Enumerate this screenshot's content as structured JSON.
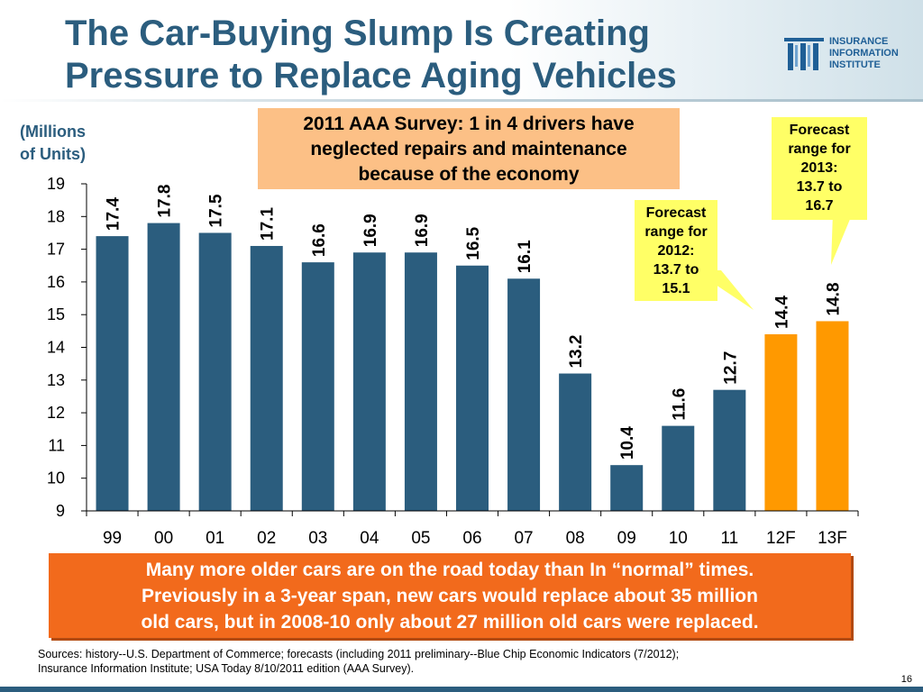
{
  "slide": {
    "title_line1": "The Car-Buying Slump Is Creating",
    "title_line2": "Pressure to Replace Aging Vehicles",
    "logo_line1": "INSURANCE",
    "logo_line2": "INFORMATION",
    "logo_line3": "INSTITUTE",
    "units_line1": "(Millions",
    "units_line2": "of Units)",
    "survey_line1": "2011 AAA Survey: 1 in 4 drivers have",
    "survey_line2": "neglected repairs and maintenance",
    "survey_line3": "because of the economy",
    "callout_2012": [
      "Forecast",
      "range for",
      "2012:",
      "13.7 to",
      "15.1"
    ],
    "callout_2013": [
      "Forecast",
      "range for",
      "2013:",
      "13.7 to",
      "16.7"
    ],
    "bottom_line1": "Many more older cars are on the road today than In “normal” times.",
    "bottom_line2": "Previously in a 3-year span, new cars would replace about 35 million",
    "bottom_line3": "old cars, but in 2008-10 only about 27 million old cars were replaced.",
    "sources_line1": "Sources: history--U.S. Department of Commerce; forecasts (including 2011 preliminary--Blue Chip Economic Indicators (7/2012);",
    "sources_line2": "Insurance Information Institute; USA Today 8/10/2011 edition (AAA Survey).",
    "page_number": "16"
  },
  "colors": {
    "title": "#2b5d7e",
    "bar_history": "#2b5d7e",
    "bar_forecast": "#ff9900",
    "survey_box": "#fcc086",
    "callout": "#ffff66",
    "bottom_box": "#f26a1c"
  },
  "chart_data": {
    "type": "bar",
    "title": "",
    "ylabel": "(Millions of Units)",
    "xlabel": "",
    "ylim": [
      9,
      19
    ],
    "yticks": [
      9,
      10,
      11,
      12,
      13,
      14,
      15,
      16,
      17,
      18,
      19
    ],
    "categories": [
      "99",
      "00",
      "01",
      "02",
      "03",
      "04",
      "05",
      "06",
      "07",
      "08",
      "09",
      "10",
      "11",
      "12F",
      "13F"
    ],
    "values": [
      17.4,
      17.8,
      17.5,
      17.1,
      16.6,
      16.9,
      16.9,
      16.5,
      16.1,
      13.2,
      10.4,
      11.6,
      12.7,
      14.4,
      14.8
    ],
    "value_labels": [
      "17.4",
      "17.8",
      "17.5",
      "17.1",
      "16.6",
      "16.9",
      "16.9",
      "16.5",
      "16.1",
      "13.2",
      "10.4",
      "11.6",
      "12.7",
      "14.4",
      "14.8"
    ],
    "series_type": [
      "history",
      "history",
      "history",
      "history",
      "history",
      "history",
      "history",
      "history",
      "history",
      "history",
      "history",
      "history",
      "history",
      "forecast",
      "forecast"
    ],
    "grid": false
  }
}
